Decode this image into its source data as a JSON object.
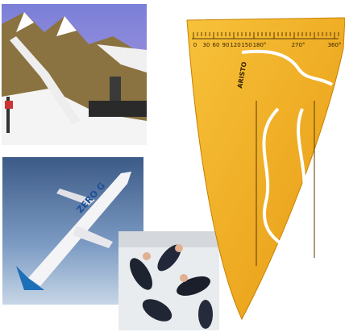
{
  "images": [
    {
      "label": "ski-jump"
    },
    {
      "label": "plane",
      "text": "ZERO G"
    },
    {
      "label": "zero-gravity-crew"
    },
    {
      "label": "ruler",
      "brand": "ARISTO",
      "scale": [
        "0",
        "30",
        "60",
        "90",
        "120",
        "150",
        "180°",
        "270°",
        "360°"
      ]
    }
  ]
}
